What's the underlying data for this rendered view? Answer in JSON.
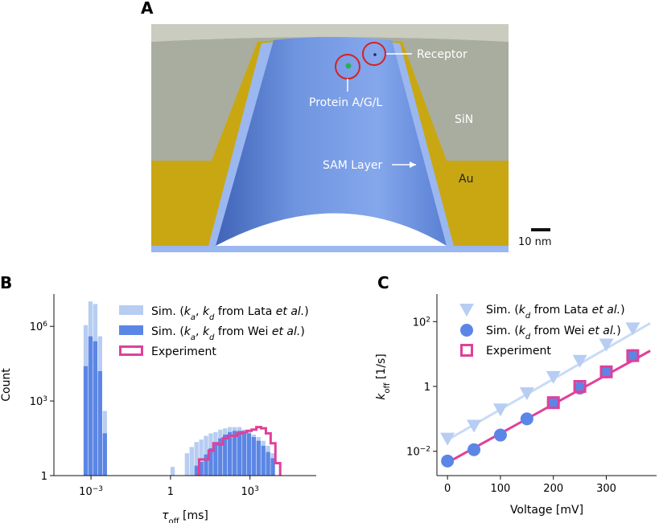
{
  "panels": {
    "a": {
      "letter": "A",
      "labels": {
        "receptor": "Receptor",
        "protein": "Protein A/G/L",
        "sin": "SiN",
        "sam": "SAM Layer",
        "au": "Au",
        "scale": "10 nm"
      },
      "colors": {
        "sin": "#a9ad9f",
        "au": "#c8a712",
        "cone": "#7a9fe6",
        "sam": "#9bb7f0",
        "circle": "#d92020"
      }
    },
    "b": {
      "letter": "B"
    },
    "c": {
      "letter": "C"
    }
  },
  "chart_data": [
    {
      "id": "B",
      "type": "histogram",
      "xlabel": "τ",
      "xlabel_sub": "off",
      "xlabel_unit": " [ms]",
      "ylabel": "Count",
      "xscale": "log",
      "yscale": "log",
      "xlim_log10": [
        -4.4,
        5.5
      ],
      "ylim_log10": [
        0,
        7.3
      ],
      "xticks": [
        {
          "v": -3,
          "base": "10",
          "exp": "−3"
        },
        {
          "v": 0,
          "base": "1",
          "exp": ""
        },
        {
          "v": 3,
          "base": "10",
          "exp": "3"
        }
      ],
      "yticks": [
        {
          "v": 0,
          "base": "1",
          "exp": ""
        },
        {
          "v": 3,
          "base": "10",
          "exp": "3"
        },
        {
          "v": 6,
          "base": "10",
          "exp": "6"
        }
      ],
      "bin_width_log10": 0.18,
      "legend": {
        "position": "top-right",
        "entries": [
          {
            "pre": "Sim. (",
            "a": "k",
            "a_sub": "a",
            "mid": ", ",
            "b": "k",
            "b_sub": "d",
            "post": " from Lata ",
            "italic": "et al.",
            "end": ")"
          },
          {
            "pre": "Sim. (",
            "a": "k",
            "a_sub": "a",
            "mid": ", ",
            "b": "k",
            "b_sub": "d",
            "post": " from Wei ",
            "italic": "et al.",
            "end": ")"
          },
          {
            "pre": "Experiment",
            "a": "",
            "a_sub": "",
            "mid": "",
            "b": "",
            "b_sub": "",
            "post": "",
            "italic": "",
            "end": ""
          }
        ]
      },
      "series": [
        {
          "name": "Sim. (ka, kd from Lata et al.)",
          "color": "#b7cdf2",
          "bins": [
            [
              -3.28,
              6.05
            ],
            [
              -3.1,
              7.0
            ],
            [
              -2.92,
              6.9
            ],
            [
              -2.74,
              5.6
            ],
            [
              -2.56,
              2.6
            ],
            [
              0.0,
              0.35
            ],
            [
              0.54,
              0.9
            ],
            [
              0.72,
              1.15
            ],
            [
              0.9,
              1.35
            ],
            [
              1.08,
              1.45
            ],
            [
              1.26,
              1.6
            ],
            [
              1.44,
              1.7
            ],
            [
              1.62,
              1.75
            ],
            [
              1.8,
              1.85
            ],
            [
              1.98,
              1.9
            ],
            [
              2.16,
              1.95
            ],
            [
              2.34,
              1.95
            ],
            [
              2.52,
              1.95
            ],
            [
              2.7,
              1.85
            ],
            [
              2.88,
              1.75
            ],
            [
              3.06,
              1.65
            ],
            [
              3.24,
              1.55
            ],
            [
              3.42,
              1.4
            ],
            [
              3.6,
              1.2
            ],
            [
              3.78,
              0.9
            ]
          ]
        },
        {
          "name": "Sim. (ka, kd from Wei et al.)",
          "color": "#5b86e5",
          "bins": [
            [
              -3.28,
              4.4
            ],
            [
              -3.1,
              5.6
            ],
            [
              -2.92,
              5.4
            ],
            [
              -2.74,
              4.2
            ],
            [
              -2.56,
              1.7
            ],
            [
              0.9,
              0.4
            ],
            [
              1.08,
              0.55
            ],
            [
              1.26,
              0.85
            ],
            [
              1.44,
              1.1
            ],
            [
              1.62,
              1.3
            ],
            [
              1.8,
              1.5
            ],
            [
              1.98,
              1.65
            ],
            [
              2.16,
              1.75
            ],
            [
              2.34,
              1.8
            ],
            [
              2.52,
              1.8
            ],
            [
              2.7,
              1.75
            ],
            [
              2.88,
              1.7
            ],
            [
              3.06,
              1.55
            ],
            [
              3.24,
              1.4
            ],
            [
              3.42,
              1.2
            ],
            [
              3.6,
              0.95
            ],
            [
              3.78,
              0.7
            ]
          ]
        },
        {
          "name": "Experiment",
          "color": "#e0409a",
          "style": "step",
          "bins": [
            [
              1.08,
              0.65
            ],
            [
              1.26,
              0.65
            ],
            [
              1.44,
              1.0
            ],
            [
              1.62,
              1.3
            ],
            [
              1.8,
              1.25
            ],
            [
              1.98,
              1.5
            ],
            [
              2.16,
              1.6
            ],
            [
              2.34,
              1.6
            ],
            [
              2.52,
              1.7
            ],
            [
              2.7,
              1.75
            ],
            [
              2.88,
              1.8
            ],
            [
              3.06,
              1.85
            ],
            [
              3.24,
              1.95
            ],
            [
              3.42,
              1.9
            ],
            [
              3.6,
              1.7
            ],
            [
              3.78,
              1.3
            ],
            [
              3.96,
              0.5
            ]
          ]
        }
      ]
    },
    {
      "id": "C",
      "type": "scatter-line",
      "xlabel": "Voltage [mV]",
      "ylabel": "k",
      "ylabel_sub": "off",
      "ylabel_unit": " [1/s]",
      "yscale": "log",
      "xlim": [
        -20,
        395
      ],
      "ylim_log10": [
        -2.75,
        2.85
      ],
      "xticks": [
        0,
        100,
        200,
        300
      ],
      "yticks": [
        {
          "v": -2,
          "base": "10",
          "exp": "−2"
        },
        {
          "v": 0,
          "base": "1",
          "exp": ""
        },
        {
          "v": 2,
          "base": "10",
          "exp": "2"
        }
      ],
      "legend": {
        "position": "top-left",
        "entries": [
          {
            "pre": "Sim. (",
            "b": "k",
            "b_sub": "d",
            "post": " from Lata ",
            "italic": "et al.",
            "end": ")"
          },
          {
            "pre": "Sim. (",
            "b": "k",
            "b_sub": "d",
            "post": " from Wei ",
            "italic": "et al.",
            "end": ")"
          },
          {
            "pre": "Experiment",
            "b": "",
            "b_sub": "",
            "post": "",
            "italic": "",
            "end": ""
          }
        ]
      },
      "series": [
        {
          "name": "Sim. (kd from Lata et al.)",
          "marker": "triangle-down",
          "color": "#b7cdf2",
          "x": [
            0,
            50,
            100,
            150,
            200,
            250,
            300,
            350
          ],
          "log10y": [
            -1.6,
            -1.2,
            -0.7,
            -0.2,
            0.3,
            0.8,
            1.3,
            1.8
          ],
          "fit": [
            -1.65,
            1.95
          ]
        },
        {
          "name": "Sim. (kd from Wei et al.)",
          "marker": "circle",
          "color": "#5b86e5",
          "x": [
            0,
            50,
            100,
            150,
            200,
            250,
            300,
            350
          ],
          "log10y": [
            -2.3,
            -1.95,
            -1.5,
            -1.0,
            -0.5,
            -0.05,
            0.45,
            0.95
          ],
          "fit": [
            -2.35,
            1.1
          ]
        },
        {
          "name": "Experiment",
          "marker": "square-open",
          "color": "#e0409a",
          "x": [
            200,
            250,
            300,
            350
          ],
          "log10y": [
            -0.5,
            0.0,
            0.45,
            0.95
          ]
        }
      ]
    }
  ]
}
